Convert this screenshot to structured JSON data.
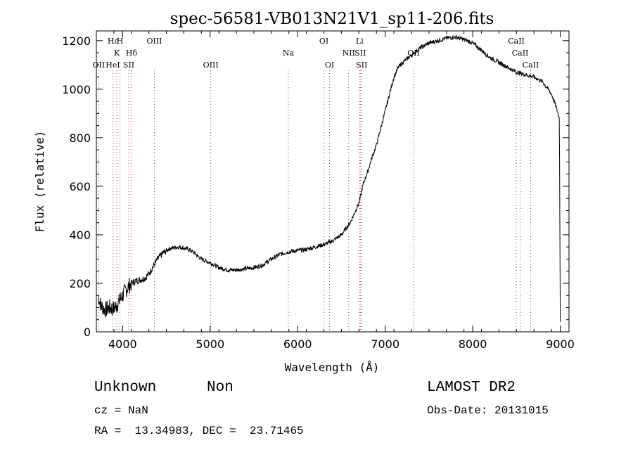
{
  "chart_data": {
    "type": "line",
    "title": "spec-56581-VB013N21V1_sp11-206.fits",
    "xlabel": "Wavelength (Å)",
    "ylabel": "Flux (relative)",
    "xlim": [
      3700,
      9100
    ],
    "ylim": [
      0,
      1240
    ],
    "xticks": [
      4000,
      5000,
      6000,
      7000,
      8000,
      9000
    ],
    "yticks": [
      0,
      200,
      400,
      600,
      800,
      1000,
      1200
    ],
    "grid": false,
    "series": [
      {
        "x": [
          3720,
          3750,
          3800,
          3850,
          3900,
          3950,
          4000,
          4050,
          4100,
          4150,
          4200,
          4250,
          4300,
          4350,
          4400,
          4450,
          4500,
          4550,
          4600,
          4650,
          4700,
          4750,
          4800,
          4850,
          4900,
          4950,
          5000,
          5100,
          5200,
          5300,
          5400,
          5500,
          5600,
          5700,
          5800,
          5900,
          6000,
          6100,
          6200,
          6300,
          6400,
          6500,
          6600,
          6700,
          6750,
          6800,
          6850,
          6900,
          6950,
          7000,
          7050,
          7100,
          7150,
          7200,
          7300,
          7400,
          7500,
          7600,
          7700,
          7800,
          7900,
          8000,
          8100,
          8200,
          8300,
          8400,
          8500,
          8600,
          8700,
          8800,
          8900,
          8950,
          8990,
          9000
        ],
        "y": [
          150,
          110,
          90,
          100,
          95,
          120,
          150,
          180,
          200,
          210,
          215,
          220,
          240,
          270,
          300,
          320,
          335,
          345,
          348,
          350,
          345,
          340,
          330,
          315,
          300,
          292,
          285,
          265,
          255,
          255,
          260,
          265,
          275,
          300,
          320,
          330,
          335,
          340,
          350,
          360,
          375,
          400,
          450,
          530,
          610,
          660,
          720,
          770,
          840,
          910,
          980,
          1050,
          1090,
          1110,
          1140,
          1170,
          1190,
          1200,
          1210,
          1215,
          1205,
          1190,
          1160,
          1130,
          1110,
          1090,
          1070,
          1060,
          1050,
          1030,
          980,
          930,
          880,
          40
        ]
      }
    ],
    "spectral_lines": [
      {
        "label": "Hε",
        "wave": 3889,
        "row": 1
      },
      {
        "label": "H",
        "wave": 3970,
        "row": 1
      },
      {
        "label": "OIII",
        "wave": 4363,
        "row": 1
      },
      {
        "label": "OI",
        "wave": 6300,
        "row": 1
      },
      {
        "label": "Li",
        "wave": 6708,
        "row": 1
      },
      {
        "label": "CaII",
        "wave": 8498,
        "row": 1
      },
      {
        "label": "K",
        "wave": 3934,
        "row": 2
      },
      {
        "label": "Hδ",
        "wave": 4102,
        "row": 2
      },
      {
        "label": "Na",
        "wave": 5893,
        "row": 2
      },
      {
        "label": "NII",
        "wave": 6583,
        "row": 2
      },
      {
        "label": "SII",
        "wave": 6716,
        "row": 2
      },
      {
        "label": "OII",
        "wave": 7325,
        "row": 2
      },
      {
        "label": "CaII",
        "wave": 8542,
        "row": 2
      },
      {
        "label": "OII",
        "wave": 3727,
        "row": 3
      },
      {
        "label": "HeI",
        "wave": 3889,
        "row": 3
      },
      {
        "label": "SII",
        "wave": 4070,
        "row": 3
      },
      {
        "label": "OIII",
        "wave": 5007,
        "row": 3
      },
      {
        "label": "OI",
        "wave": 6364,
        "row": 3
      },
      {
        "label": "SII",
        "wave": 6731,
        "row": 3
      },
      {
        "label": "CaII",
        "wave": 8662,
        "row": 3
      }
    ]
  },
  "info": {
    "class": "Unknown",
    "subclass": "Non",
    "survey": "LAMOST DR2",
    "cz": "cz = NaN",
    "obs_date": "Obs-Date: 20131015",
    "coords": "RA =  13.34983, DEC =  23.71465"
  }
}
